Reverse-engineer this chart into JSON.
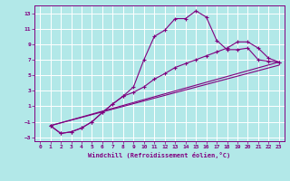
{
  "xlabel": "Windchill (Refroidissement éolien,°C)",
  "background_color": "#b2e8e8",
  "line_color": "#800080",
  "grid_color": "#ffffff",
  "xlim": [
    -0.5,
    23.5
  ],
  "ylim": [
    -3.5,
    14.0
  ],
  "yticks": [
    -3,
    -1,
    1,
    3,
    5,
    7,
    9,
    11,
    13
  ],
  "xticks": [
    0,
    1,
    2,
    3,
    4,
    5,
    6,
    7,
    8,
    9,
    10,
    11,
    12,
    13,
    14,
    15,
    16,
    17,
    18,
    19,
    20,
    21,
    22,
    23
  ],
  "line1_x": [
    1,
    2,
    3,
    4,
    5,
    6,
    7,
    8,
    9,
    10,
    11,
    12,
    13,
    14,
    15,
    16,
    17,
    18,
    19,
    20,
    21,
    22,
    23
  ],
  "line1_y": [
    -1.5,
    -2.5,
    -2.3,
    -1.8,
    -1.0,
    0.2,
    1.3,
    2.3,
    3.5,
    7.0,
    10.0,
    10.8,
    12.3,
    12.3,
    13.3,
    12.5,
    9.5,
    8.3,
    8.3,
    8.5,
    7.0,
    6.8,
    6.7
  ],
  "line2_x": [
    1,
    2,
    3,
    4,
    5,
    6,
    7,
    8,
    9,
    10,
    11,
    12,
    13,
    14,
    15,
    16,
    17,
    18,
    19,
    20,
    21,
    22,
    23
  ],
  "line2_y": [
    -1.5,
    -2.5,
    -2.3,
    -1.8,
    -1.0,
    0.2,
    1.3,
    2.3,
    2.8,
    3.5,
    4.5,
    5.2,
    6.0,
    6.5,
    7.0,
    7.5,
    8.0,
    8.5,
    9.3,
    9.3,
    8.5,
    7.2,
    6.7
  ],
  "line3_x": [
    1,
    23
  ],
  "line3_y": [
    -1.5,
    6.7
  ],
  "line4_x": [
    1,
    23
  ],
  "line4_y": [
    -1.5,
    6.3
  ]
}
